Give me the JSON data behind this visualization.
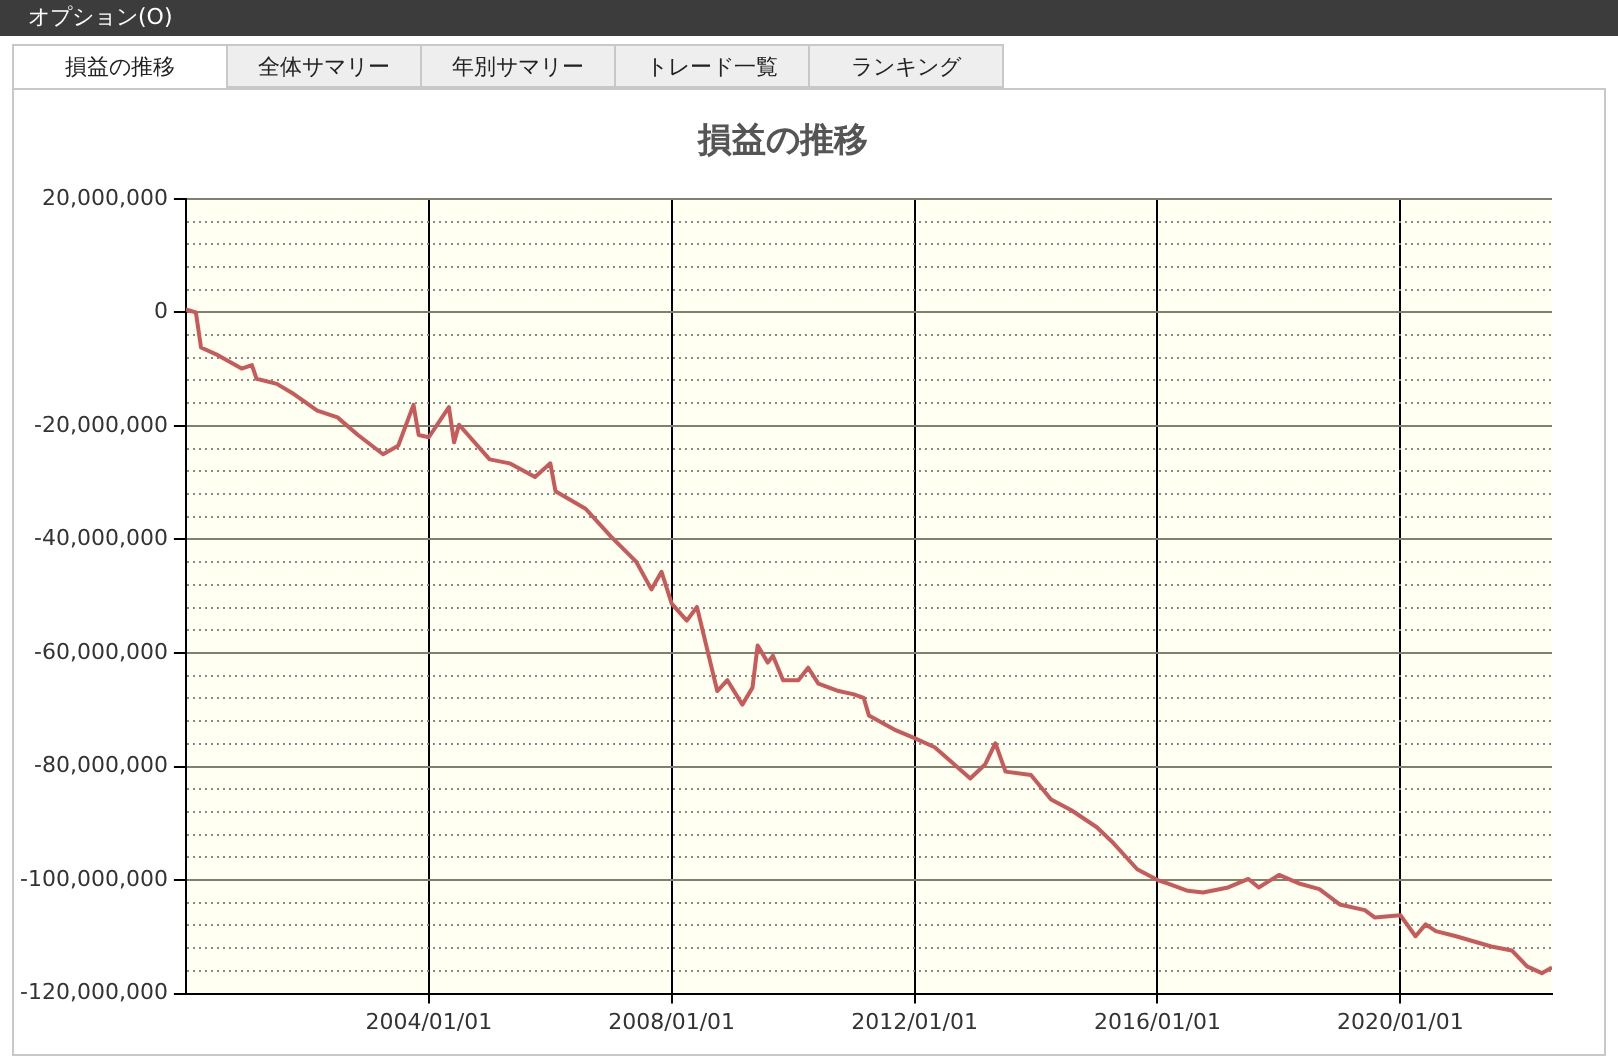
{
  "chart_data": {
    "type": "line",
    "title": "損益の推移",
    "annotations": [
      "オプション(O)",
      "損益の推移",
      "全体サマリー",
      "年別サマリー",
      "トレード一覧",
      "ランキング"
    ],
    "x": [
      "2000-01",
      "2000-03",
      "2000-04",
      "2000-07",
      "2000-12",
      "2001-02",
      "2001-03",
      "2001-07",
      "2001-10",
      "2002-03",
      "2002-07",
      "2002-11",
      "2003-04",
      "2003-07",
      "2003-10",
      "2003-11",
      "2004-01",
      "2004-05",
      "2004-06",
      "2004-07",
      "2005-01",
      "2005-05",
      "2005-10",
      "2006-01",
      "2006-02",
      "2006-08",
      "2007-01",
      "2007-06",
      "2007-09",
      "2007-11",
      "2008-01",
      "2008-04",
      "2008-06",
      "2008-08",
      "2008-10",
      "2008-12",
      "2009-03",
      "2009-05",
      "2009-06",
      "2009-08",
      "2009-09",
      "2009-11",
      "2010-02",
      "2010-04",
      "2010-06",
      "2010-10",
      "2011-01",
      "2011-03",
      "2011-04",
      "2011-09",
      "2012-01",
      "2012-05",
      "2012-12",
      "2013-03",
      "2013-05",
      "2013-07",
      "2013-12",
      "2014-04",
      "2014-08",
      "2015-01",
      "2015-04",
      "2015-09",
      "2016-01",
      "2016-03",
      "2016-07",
      "2016-10",
      "2017-03",
      "2017-07",
      "2017-09",
      "2018-01",
      "2018-05",
      "2018-09",
      "2019-01",
      "2019-06",
      "2019-08",
      "2020-01",
      "2020-04",
      "2020-06",
      "2020-08",
      "2020-12",
      "2021-07",
      "2021-11",
      "2022-02",
      "2022-05",
      "2022-07"
    ],
    "series": [
      {
        "color": "#c85a5a",
        "values": [
          500000,
          0,
          -6200000,
          -7400000,
          -9900000,
          -9300000,
          -11700000,
          -12600000,
          -14200000,
          -17300000,
          -18500000,
          -21600000,
          -25000000,
          -23500000,
          -16300000,
          -21600000,
          -22000000,
          -16700000,
          -22900000,
          -19800000,
          -25900000,
          -26600000,
          -29000000,
          -26600000,
          -31500000,
          -34600000,
          -39500000,
          -43900000,
          -48800000,
          -45700000,
          -51300000,
          -54300000,
          -51900000,
          -59300000,
          -66700000,
          -64800000,
          -69100000,
          -66100000,
          -58700000,
          -61700000,
          -60500000,
          -64800000,
          -64800000,
          -62600000,
          -65400000,
          -66700000,
          -67300000,
          -67900000,
          -71000000,
          -73500000,
          -75000000,
          -76600000,
          -82100000,
          -79600000,
          -75900000,
          -80900000,
          -81500000,
          -85800000,
          -87700000,
          -90700000,
          -93200000,
          -98100000,
          -100000000,
          -100600000,
          -101900000,
          -102200000,
          -101300000,
          -99800000,
          -101300000,
          -99100000,
          -100600000,
          -101600000,
          -104300000,
          -105300000,
          -106600000,
          -106200000,
          -109900000,
          -107800000,
          -109000000,
          -109900000,
          -111700000,
          -112400000,
          -115200000,
          -116400000,
          -115400000
        ]
      }
    ],
    "xlim": [
      "2000-01-01",
      "2022-07-01"
    ],
    "xticks": [
      {
        "value": "2004-01-01",
        "label": "2004/01/01"
      },
      {
        "value": "2008-01-01",
        "label": "2008/01/01"
      },
      {
        "value": "2012-01-01",
        "label": "2012/01/01"
      },
      {
        "value": "2016-01-01",
        "label": "2016/01/01"
      },
      {
        "value": "2020-01-01",
        "label": "2020/01/01"
      }
    ],
    "ylim": [
      -120000000,
      20000000
    ],
    "yticks": [
      {
        "value": -120000000,
        "label": "-120,000,000"
      },
      {
        "value": -116000000,
        "label": null
      },
      {
        "value": -112000000,
        "label": null
      },
      {
        "value": -108000000,
        "label": null
      },
      {
        "value": -104000000,
        "label": null
      },
      {
        "value": -100000000,
        "label": "-100,000,000"
      },
      {
        "value": -96000000,
        "label": null
      },
      {
        "value": -92000000,
        "label": null
      },
      {
        "value": -88000000,
        "label": null
      },
      {
        "value": -84000000,
        "label": null
      },
      {
        "value": -80000000,
        "label": "-80,000,000"
      },
      {
        "value": -76000000,
        "label": null
      },
      {
        "value": -72000000,
        "label": null
      },
      {
        "value": -68000000,
        "label": null
      },
      {
        "value": -64000000,
        "label": null
      },
      {
        "value": -60000000,
        "label": "-60,000,000"
      },
      {
        "value": -56000000,
        "label": null
      },
      {
        "value": -52000000,
        "label": null
      },
      {
        "value": -48000000,
        "label": null
      },
      {
        "value": -44000000,
        "label": null
      },
      {
        "value": -40000000,
        "label": "-40,000,000"
      },
      {
        "value": -36000000,
        "label": null
      },
      {
        "value": -32000000,
        "label": null
      },
      {
        "value": -28000000,
        "label": null
      },
      {
        "value": -24000000,
        "label": null
      },
      {
        "value": -20000000,
        "label": "-20,000,000"
      },
      {
        "value": -16000000,
        "label": null
      },
      {
        "value": -12000000,
        "label": null
      },
      {
        "value": -8000000,
        "label": null
      },
      {
        "value": -4000000,
        "label": null
      },
      {
        "value": 0,
        "label": "0"
      },
      {
        "value": 4000000,
        "label": null
      },
      {
        "value": 8000000,
        "label": null
      },
      {
        "value": 12000000,
        "label": null
      },
      {
        "value": 16000000,
        "label": null
      },
      {
        "value": 20000000,
        "label": "20,000,000"
      }
    ],
    "grid": true,
    "marker": "none",
    "line_style": "solid",
    "legend": false
  }
}
